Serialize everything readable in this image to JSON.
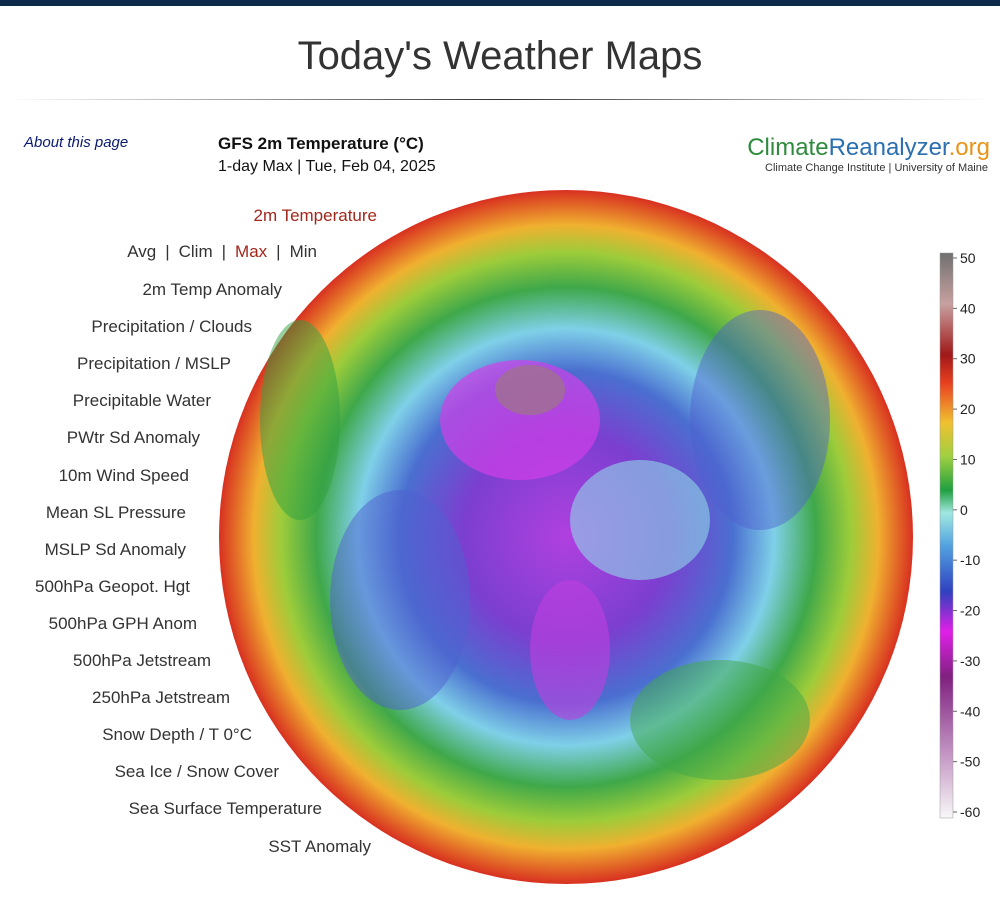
{
  "header": {
    "title": "Today's Weather Maps"
  },
  "about": "About this page",
  "map": {
    "title": "GFS 2m Temperature (°C)",
    "subtitle": "1-day Max | Tue, Feb 04, 2025"
  },
  "logo": {
    "part1": "Climate",
    "part2": "Reanalyzer",
    "part3": ".org",
    "subtitle": "Climate Change Institute | University of Maine"
  },
  "menu": {
    "heading": "2m Temperature",
    "variants": [
      "Avg",
      "Clim",
      "Max",
      "Min"
    ],
    "separator": "|",
    "items": [
      "2m Temp Anomaly",
      "Precipitation / Clouds",
      "Precipitation / MSLP",
      "Precipitable Water",
      "PWtr Sd Anomaly",
      "10m Wind Speed",
      "Mean SL Pressure",
      "MSLP Sd Anomaly",
      "500hPa Geopot. Hgt",
      "500hPa GPH Anom",
      "500hPa Jetstream",
      "250hPa Jetstream",
      "Snow Depth / T 0°C",
      "Sea Ice / Snow Cover",
      "Sea Surface Temperature",
      "SST Anomaly"
    ]
  },
  "colorbar": {
    "ticks": [
      50,
      40,
      30,
      20,
      10,
      0,
      -10,
      -20,
      -30,
      -40,
      -50,
      -60
    ]
  }
}
